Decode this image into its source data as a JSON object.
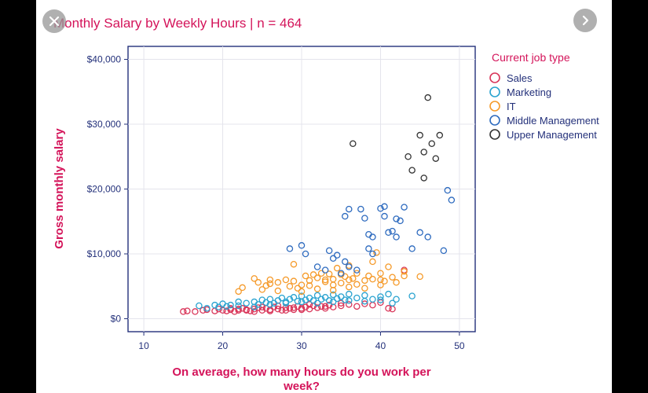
{
  "chart_data": {
    "type": "scatter",
    "title": "Monthly Salary by Weekly Hours | n = 464",
    "xlabel": "On average, how many hours do you work per week?",
    "ylabel": "Gross monthly salary",
    "xlim": [
      8,
      52
    ],
    "ylim": [
      -2000,
      42000
    ],
    "xticks": [
      10,
      20,
      30,
      40,
      50
    ],
    "yticks": [
      0,
      10000,
      20000,
      30000,
      40000
    ],
    "ytick_labels": [
      "$0",
      "$10,000",
      "$20,000",
      "$30,000",
      "$40,000"
    ],
    "grid": true,
    "legend_title": "Current job type",
    "legend_position": "right",
    "series": [
      {
        "name": "Sales",
        "color": "#d9365a",
        "points": [
          [
            15,
            1100
          ],
          [
            15.5,
            1200
          ],
          [
            16.5,
            1100
          ],
          [
            17.5,
            1300
          ],
          [
            18,
            1400
          ],
          [
            19,
            1200
          ],
          [
            19.5,
            1500
          ],
          [
            20,
            1300
          ],
          [
            20.5,
            1200
          ],
          [
            21,
            1400
          ],
          [
            21.5,
            1100
          ],
          [
            22,
            1500
          ],
          [
            22,
            1300
          ],
          [
            22.5,
            1600
          ],
          [
            23,
            1400
          ],
          [
            23.5,
            1200
          ],
          [
            24,
            1500
          ],
          [
            24.5,
            1700
          ],
          [
            25,
            1300
          ],
          [
            25.5,
            1600
          ],
          [
            26,
            1400
          ],
          [
            26.5,
            1800
          ],
          [
            27,
            1500
          ],
          [
            27.5,
            1300
          ],
          [
            28,
            1700
          ],
          [
            28.5,
            1600
          ],
          [
            29,
            1400
          ],
          [
            29.5,
            1900
          ],
          [
            30,
            1600
          ],
          [
            30.5,
            1800
          ],
          [
            31,
            1500
          ],
          [
            31.5,
            2000
          ],
          [
            32,
            1700
          ],
          [
            32.5,
            1900
          ],
          [
            33,
            1600
          ],
          [
            33.5,
            2100
          ],
          [
            34,
            1800
          ],
          [
            35,
            2000
          ],
          [
            36,
            2200
          ],
          [
            37,
            1900
          ],
          [
            38,
            2300
          ],
          [
            39,
            2100
          ],
          [
            40,
            2500
          ],
          [
            41,
            1600
          ],
          [
            41.5,
            1500
          ],
          [
            43,
            7500
          ],
          [
            21,
            1600
          ],
          [
            23,
            1300
          ],
          [
            25,
            1800
          ],
          [
            27,
            2000
          ],
          [
            29,
            1700
          ],
          [
            31,
            2200
          ],
          [
            33,
            1900
          ],
          [
            35,
            2400
          ],
          [
            24,
            1100
          ],
          [
            26,
            1200
          ],
          [
            28,
            1300
          ],
          [
            30,
            1400
          ]
        ]
      },
      {
        "name": "Marketing",
        "color": "#2aa3d0",
        "points": [
          [
            17,
            2000
          ],
          [
            18,
            1600
          ],
          [
            19,
            2100
          ],
          [
            19.5,
            1800
          ],
          [
            20,
            2300
          ],
          [
            20.5,
            1900
          ],
          [
            21,
            2100
          ],
          [
            22,
            2000
          ],
          [
            23,
            2400
          ],
          [
            24,
            2600
          ],
          [
            24.5,
            2200
          ],
          [
            25,
            2900
          ],
          [
            25.5,
            2500
          ],
          [
            26,
            3000
          ],
          [
            26.5,
            2400
          ],
          [
            27,
            2800
          ],
          [
            27.5,
            3200
          ],
          [
            28,
            2600
          ],
          [
            28.5,
            3000
          ],
          [
            29,
            3300
          ],
          [
            29.5,
            2700
          ],
          [
            30,
            3500
          ],
          [
            30.5,
            2900
          ],
          [
            31,
            3200
          ],
          [
            31.5,
            2800
          ],
          [
            32,
            3600
          ],
          [
            32.5,
            3000
          ],
          [
            33,
            3300
          ],
          [
            33.5,
            2800
          ],
          [
            34,
            3700
          ],
          [
            34.5,
            3100
          ],
          [
            35,
            3400
          ],
          [
            35.5,
            2900
          ],
          [
            36,
            3800
          ],
          [
            37,
            3200
          ],
          [
            38,
            3600
          ],
          [
            39,
            3000
          ],
          [
            40,
            3400
          ],
          [
            41,
            3800
          ],
          [
            41.5,
            2400
          ],
          [
            44,
            3500
          ],
          [
            22,
            2600
          ],
          [
            24,
            1800
          ],
          [
            26,
            2200
          ],
          [
            28,
            2400
          ],
          [
            30,
            2600
          ],
          [
            32,
            2400
          ],
          [
            34,
            2600
          ],
          [
            36,
            2800
          ],
          [
            38,
            2700
          ],
          [
            40,
            2900
          ],
          [
            42,
            3000
          ]
        ]
      },
      {
        "name": "IT",
        "color": "#f59a2a",
        "points": [
          [
            22,
            4200
          ],
          [
            22.5,
            4800
          ],
          [
            24,
            6200
          ],
          [
            24.5,
            5600
          ],
          [
            25,
            4500
          ],
          [
            25.5,
            5100
          ],
          [
            26,
            5400
          ],
          [
            27,
            4300
          ],
          [
            28,
            6000
          ],
          [
            28.5,
            5000
          ],
          [
            29,
            8400
          ],
          [
            29.5,
            4700
          ],
          [
            30,
            5200
          ],
          [
            30.5,
            6600
          ],
          [
            31,
            5900
          ],
          [
            31.5,
            6800
          ],
          [
            32,
            6300
          ],
          [
            32.5,
            7000
          ],
          [
            33,
            5700
          ],
          [
            33.5,
            6900
          ],
          [
            34,
            6100
          ],
          [
            34.5,
            7800
          ],
          [
            35,
            5500
          ],
          [
            35.5,
            6500
          ],
          [
            36,
            8200
          ],
          [
            36.5,
            6200
          ],
          [
            37,
            7000
          ],
          [
            38,
            5900
          ],
          [
            38.5,
            6600
          ],
          [
            39,
            8800
          ],
          [
            39.5,
            10200
          ],
          [
            40,
            7000
          ],
          [
            40.5,
            5800
          ],
          [
            41,
            8000
          ],
          [
            41.5,
            6400
          ],
          [
            42,
            5600
          ],
          [
            43,
            6600
          ],
          [
            43,
            7300
          ],
          [
            45,
            6500
          ],
          [
            30,
            4200
          ],
          [
            32,
            4600
          ],
          [
            34,
            4400
          ],
          [
            36,
            4900
          ],
          [
            38,
            4700
          ],
          [
            40,
            5200
          ],
          [
            33,
            6000
          ],
          [
            35,
            6800
          ],
          [
            37,
            5300
          ],
          [
            39,
            6100
          ],
          [
            31,
            5100
          ],
          [
            29,
            5800
          ],
          [
            27,
            5600
          ],
          [
            26,
            6000
          ],
          [
            36,
            6000
          ],
          [
            34,
            5200
          ],
          [
            40,
            6000
          ]
        ]
      },
      {
        "name": "Middle Management",
        "color": "#2e6bbf",
        "points": [
          [
            28.5,
            10800
          ],
          [
            30,
            11300
          ],
          [
            30.5,
            10000
          ],
          [
            33.5,
            10500
          ],
          [
            34,
            9300
          ],
          [
            34.5,
            9800
          ],
          [
            35.5,
            8800
          ],
          [
            35.5,
            15800
          ],
          [
            36,
            16900
          ],
          [
            37.5,
            16900
          ],
          [
            38,
            15500
          ],
          [
            38.5,
            10800
          ],
          [
            38.5,
            13000
          ],
          [
            39,
            12600
          ],
          [
            39,
            10000
          ],
          [
            40,
            17000
          ],
          [
            40.5,
            17300
          ],
          [
            40.5,
            15800
          ],
          [
            41,
            13300
          ],
          [
            41.5,
            13500
          ],
          [
            42,
            12600
          ],
          [
            42,
            15400
          ],
          [
            42.5,
            15100
          ],
          [
            43,
            17200
          ],
          [
            44,
            10800
          ],
          [
            45,
            13300
          ],
          [
            46,
            12600
          ],
          [
            48,
            10500
          ],
          [
            48.5,
            19800
          ],
          [
            49,
            18300
          ],
          [
            35,
            7000
          ],
          [
            36,
            8000
          ],
          [
            37,
            7500
          ],
          [
            32,
            8000
          ],
          [
            33,
            7500
          ]
        ]
      },
      {
        "name": "Upper Management",
        "color": "#333333",
        "points": [
          [
            36.5,
            27000
          ],
          [
            43.5,
            25000
          ],
          [
            44,
            22900
          ],
          [
            45,
            28300
          ],
          [
            45.5,
            25700
          ],
          [
            45.5,
            21700
          ],
          [
            46,
            34100
          ],
          [
            46.5,
            27000
          ],
          [
            47,
            24700
          ],
          [
            47.5,
            28300
          ]
        ]
      }
    ]
  }
}
